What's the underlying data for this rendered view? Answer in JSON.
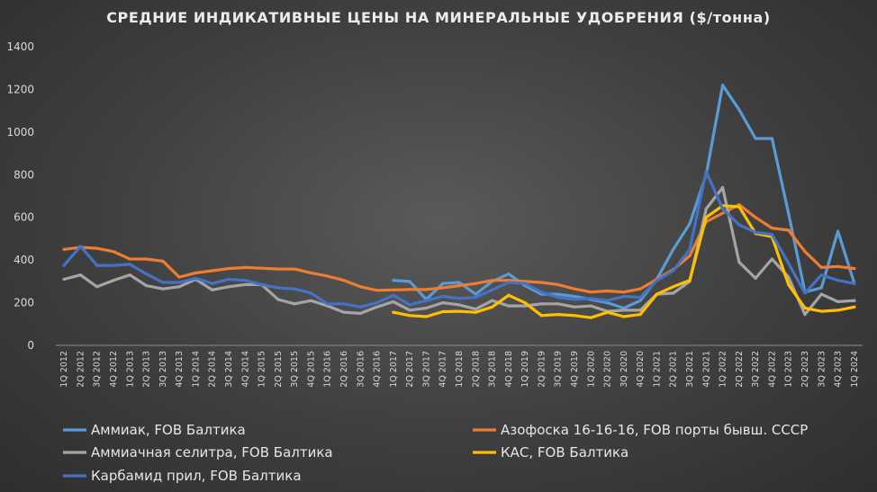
{
  "chart_data": {
    "type": "line",
    "title": "СРЕДНИЕ ИНДИКАТИВНЫЕ ЦЕНЫ НА МИНЕРАЛЬНЫЕ УДОБРЕНИЯ ($/тонна)",
    "xlabel": "",
    "ylabel": "",
    "ylim": [
      0,
      1400
    ],
    "yticks": [
      "0",
      "200",
      "400",
      "600",
      "800",
      "1000",
      "1200",
      "1400"
    ],
    "grid": false,
    "legend_position": "bottom",
    "categories": [
      "1Q 2012",
      "2Q 2012",
      "3Q 2012",
      "4Q 2012",
      "1Q 2013",
      "2Q 2013",
      "3Q 2013",
      "4Q 2013",
      "1Q 2014",
      "2Q 2014",
      "3Q 2014",
      "4Q 2014",
      "1Q 2015",
      "2Q 2015",
      "3Q 2015",
      "4Q 2015",
      "1Q 2016",
      "2Q 2016",
      "3Q 2016",
      "4Q 2016",
      "1Q 2017",
      "2Q 2017",
      "3Q 2017",
      "4Q 2017",
      "1Q 2018",
      "2Q 2018",
      "3Q 2018",
      "4Q 2018",
      "1Q 2019",
      "2Q 2019",
      "3Q 2019",
      "4Q 2019",
      "1Q 2020",
      "2Q 2020",
      "3Q 2020",
      "4Q 2020",
      "1Q 2021",
      "2Q 2021",
      "3Q 2021",
      "4Q 2021",
      "1Q 2022",
      "2Q 2022",
      "3Q 2022",
      "4Q 2022",
      "1Q 2023",
      "2Q 2023",
      "3Q 2023",
      "4Q 2023",
      "1Q 2024"
    ],
    "series": [
      {
        "name": "Аммиак, FOB Балтика",
        "color": "#5b9bd5",
        "values": [
          null,
          null,
          null,
          null,
          null,
          null,
          null,
          null,
          null,
          null,
          null,
          null,
          null,
          null,
          null,
          null,
          null,
          null,
          null,
          null,
          305,
          300,
          215,
          290,
          295,
          240,
          300,
          335,
          280,
          240,
          240,
          230,
          215,
          200,
          175,
          210,
          310,
          450,
          570,
          800,
          1220,
          1105,
          970,
          970,
          620,
          250,
          270,
          535,
          290
        ]
      },
      {
        "name": "Азофоска 16-16-16, FOB порты бывш. СССР",
        "color": "#ed7d31",
        "values": [
          450,
          460,
          455,
          440,
          405,
          405,
          395,
          320,
          340,
          350,
          360,
          365,
          362,
          358,
          358,
          340,
          325,
          305,
          275,
          258,
          260,
          262,
          262,
          270,
          280,
          290,
          305,
          305,
          300,
          295,
          285,
          265,
          250,
          255,
          250,
          265,
          310,
          355,
          420,
          580,
          620,
          660,
          600,
          550,
          540,
          440,
          365,
          370,
          360
        ]
      },
      {
        "name": "Аммиачная селитра, FOB Балтика",
        "color": "#a5a5a5",
        "values": [
          310,
          330,
          275,
          305,
          330,
          280,
          265,
          275,
          310,
          260,
          275,
          285,
          285,
          215,
          195,
          210,
          185,
          155,
          150,
          180,
          205,
          165,
          175,
          200,
          190,
          170,
          210,
          185,
          185,
          195,
          195,
          180,
          185,
          160,
          165,
          165,
          240,
          245,
          300,
          640,
          740,
          390,
          315,
          405,
          320,
          145,
          240,
          205,
          210
        ]
      },
      {
        "name": "КАС, FOB Балтика",
        "color": "#ffc000",
        "values": [
          null,
          null,
          null,
          null,
          null,
          null,
          null,
          null,
          null,
          null,
          null,
          null,
          null,
          null,
          null,
          null,
          null,
          null,
          null,
          null,
          155,
          140,
          135,
          158,
          160,
          155,
          180,
          235,
          200,
          140,
          145,
          140,
          130,
          155,
          135,
          145,
          240,
          275,
          305,
          600,
          655,
          650,
          525,
          510,
          285,
          175,
          160,
          165,
          180
        ]
      },
      {
        "name": "Карбамид прил, FOB Балтика",
        "color": "#4472c4",
        "values": [
          375,
          465,
          375,
          375,
          380,
          335,
          295,
          295,
          315,
          290,
          310,
          305,
          285,
          270,
          265,
          245,
          195,
          195,
          180,
          200,
          235,
          190,
          210,
          230,
          220,
          225,
          260,
          295,
          290,
          250,
          225,
          215,
          220,
          210,
          230,
          225,
          305,
          350,
          450,
          815,
          640,
          565,
          530,
          520,
          385,
          245,
          330,
          305,
          290
        ]
      }
    ]
  }
}
